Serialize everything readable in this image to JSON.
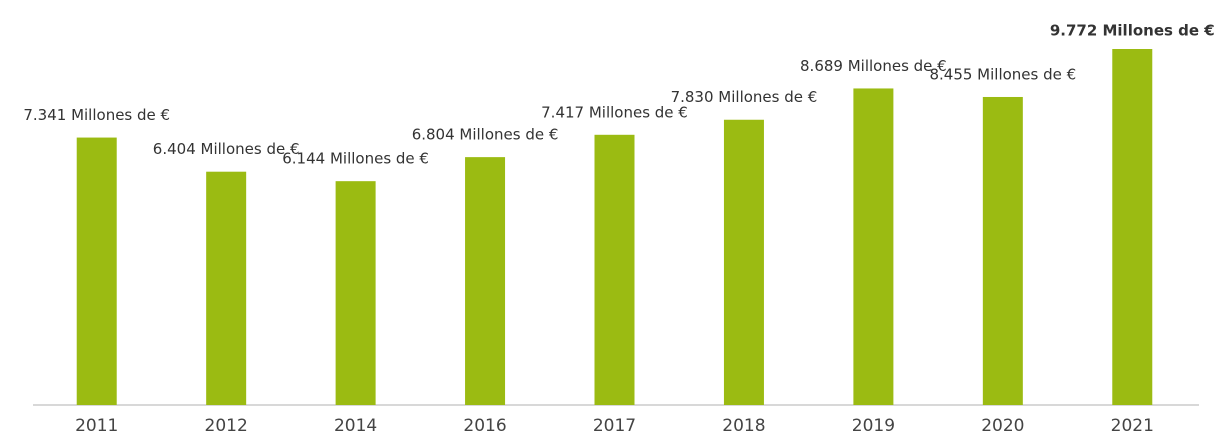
{
  "chart_data": {
    "type": "bar",
    "categories": [
      "2011",
      "2012",
      "2014",
      "2016",
      "2017",
      "2018",
      "2019",
      "2020",
      "2021"
    ],
    "values": [
      7341,
      6404,
      6144,
      6804,
      7417,
      7830,
      8689,
      8455,
      9772
    ],
    "value_labels": [
      "7.341 Millones de €",
      "6.404 Millones de €",
      "6.144 Millones de €",
      "6.804 Millones de €",
      "7.417 Millones de €",
      "7.830 Millones de €",
      "8.689 Millones de €",
      "8.455 Millones de €",
      "9.772 Millones de €"
    ],
    "color": "#9bbb12",
    "highlight_index": 8
  }
}
